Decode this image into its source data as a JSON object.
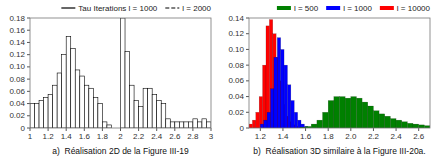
{
  "chart_data": [
    {
      "type": "histogram",
      "xlabel": "a)  Réalisation 2D de la Figure III-19",
      "bins": [
        1.0,
        1.05,
        1.1,
        1.15,
        1.2,
        1.25,
        1.3,
        1.35,
        1.4,
        1.45,
        1.5,
        1.55,
        1.6,
        1.65,
        1.7,
        1.75,
        1.8,
        1.85,
        1.9,
        1.95,
        2.0,
        2.05,
        2.1,
        2.15,
        2.2,
        2.25,
        2.3,
        2.35,
        2.4,
        2.45,
        2.5,
        2.55,
        2.6,
        2.65,
        2.7,
        2.75,
        2.8,
        2.85,
        2.9,
        2.95,
        3.0
      ],
      "series": [
        {
          "name": "Tau Iterations l = 1000",
          "type": "bar",
          "color": "black",
          "line_style": "solid",
          "values": [
            0.04,
            0.04,
            0.045,
            0.05,
            0.055,
            0.07,
            0.09,
            0.12,
            0.15,
            0.13,
            0.095,
            0.085,
            0.07,
            0.065,
            0.05,
            0.04,
            0.01,
            0.005,
            0.0,
            0.0,
            0.18,
            0.125,
            0.07,
            0.045,
            0.035,
            0.065,
            0.065,
            0.055,
            0.045,
            0.04,
            0.015,
            0.01,
            0.01,
            0.01,
            0.01,
            0.01,
            0.015,
            0.01,
            0.015,
            0.01
          ]
        },
        {
          "name": "l = 2000",
          "type": "line",
          "color": "black",
          "line_style": "dashed",
          "values": [
            null,
            null,
            null,
            null,
            null,
            null,
            null,
            null,
            null,
            null,
            null,
            null,
            null,
            null,
            null,
            null,
            null,
            null,
            null,
            null,
            null,
            null,
            null,
            null,
            null,
            null,
            null,
            null,
            null,
            null,
            null,
            null,
            null,
            null,
            null,
            null,
            null,
            null,
            null,
            null
          ]
        }
      ],
      "xlim": [
        1.0,
        3.0
      ],
      "ylim": [
        0.0,
        0.18
      ],
      "xticks": [
        1,
        1.2,
        1.4,
        1.6,
        1.8,
        2,
        2.2,
        2.4,
        2.6,
        2.8,
        3
      ],
      "yticks": [
        0,
        0.02,
        0.04,
        0.06,
        0.08,
        {
          "value": 0.1,
          "label": "0.10"
        },
        0.12,
        0.14,
        0.16,
        0.18
      ],
      "legend": "top-right",
      "grid": false
    },
    {
      "type": "histogram",
      "xlabel": "b)  Réalisation 3D similaire à la Figure III-20a.",
      "series": [
        {
          "name": "l = 500",
          "type": "bar",
          "color": "green",
          "bins": [
            1.55,
            1.6,
            1.65,
            1.7,
            1.75,
            1.8,
            1.85,
            1.9,
            1.95,
            2.0,
            2.05,
            2.1,
            2.15,
            2.2,
            2.25,
            2.3,
            2.35,
            2.4,
            2.45,
            2.5,
            2.55,
            2.6,
            2.65,
            2.7
          ],
          "values": [
            0.001,
            0.002,
            0.005,
            0.01,
            0.02,
            0.035,
            0.04,
            0.04,
            0.038,
            0.04,
            0.038,
            0.033,
            0.028,
            0.022,
            0.018,
            0.015,
            0.012,
            0.01,
            0.008,
            0.006,
            0.005,
            0.004,
            0.003
          ]
        },
        {
          "name": "l = 1000",
          "type": "bar",
          "color": "blue",
          "bins": [
            1.2,
            1.23,
            1.26,
            1.29,
            1.32,
            1.35,
            1.38,
            1.41,
            1.44,
            1.47,
            1.5,
            1.53,
            1.56,
            1.59,
            1.62,
            1.65
          ],
          "values": [
            0.005,
            0.01,
            0.02,
            0.05,
            0.09,
            0.115,
            0.1,
            0.08,
            0.055,
            0.035,
            0.02,
            0.01,
            0.005,
            0.002,
            0.001
          ]
        },
        {
          "name": "l = 10000",
          "type": "bar",
          "color": "red",
          "bins": [
            1.1,
            1.13,
            1.16,
            1.19,
            1.22,
            1.25,
            1.28,
            1.31,
            1.34,
            1.37,
            1.4,
            1.43,
            1.46,
            1.49,
            1.52,
            1.55
          ],
          "values": [
            0.005,
            0.01,
            0.02,
            0.04,
            0.08,
            0.13,
            0.138,
            0.12,
            0.09,
            0.06,
            0.03,
            0.015,
            0.008,
            0.004,
            0.002
          ]
        }
      ],
      "xlim": [
        1.1,
        2.7
      ],
      "ylim": [
        0.0,
        0.14
      ],
      "xticks": [
        1.2,
        1.4,
        1.6,
        1.8,
        {
          "value": 2,
          "label": "2.0"
        },
        2.2,
        2.4,
        2.6
      ],
      "yticks": [
        0,
        0.02,
        0.04,
        0.06,
        0.08,
        {
          "value": 0.1,
          "label": "0.10"
        },
        0.12,
        0.14
      ],
      "legend": "top-right",
      "grid": false
    }
  ]
}
